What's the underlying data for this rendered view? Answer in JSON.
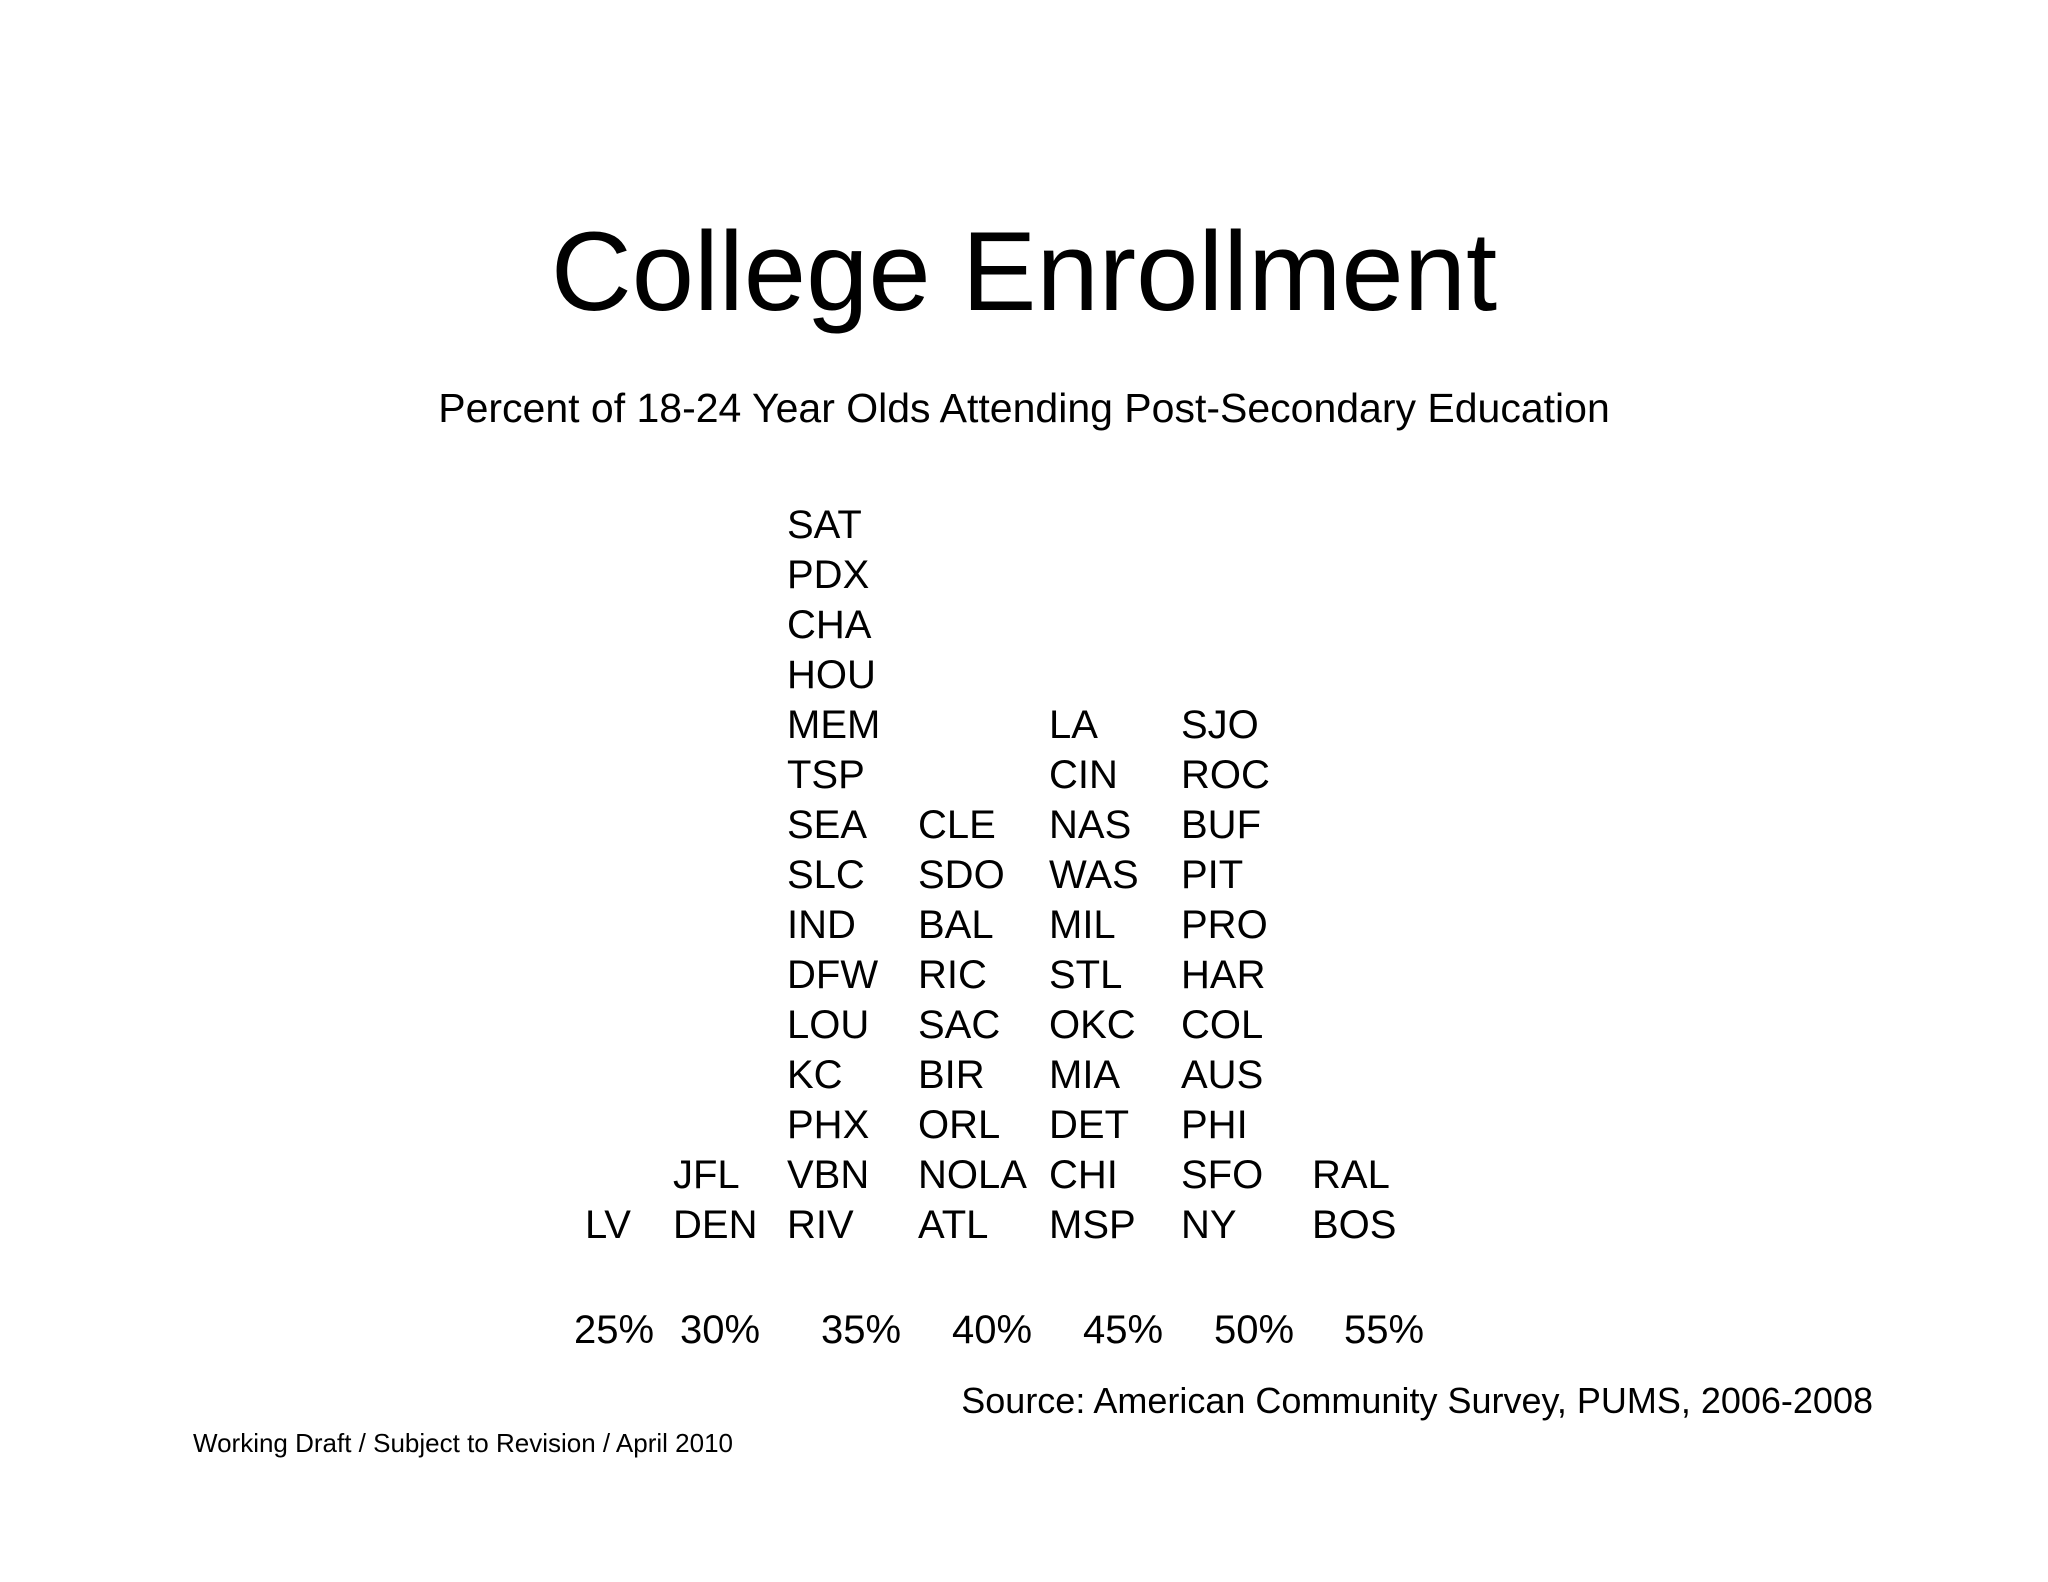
{
  "header": {
    "title": "College Enrollment",
    "subtitle": "Percent of 18-24 Year Olds Attending Post-Secondary Education"
  },
  "chart_data": {
    "type": "dot-plot (city labels stacked by bin)",
    "title": "College Enrollment",
    "subtitle": "Percent of 18-24 Year Olds Attending Post-Secondary Education",
    "x_tick_labels": [
      "25%",
      "30%",
      "35%",
      "40%",
      "45%",
      "50%",
      "55%"
    ],
    "bins": [
      {
        "bin": "25%",
        "cities": [
          "LV"
        ]
      },
      {
        "bin": "30%",
        "cities": [
          "JFL",
          "DEN"
        ]
      },
      {
        "bin": "35%",
        "cities": [
          "SAT",
          "PDX",
          "CHA",
          "HOU",
          "MEM",
          "TSP",
          "SEA",
          "SLC",
          "IND",
          "DFW",
          "LOU",
          "KC",
          "PHX",
          "VBN",
          "RIV"
        ]
      },
      {
        "bin": "40%",
        "cities": [
          "CLE",
          "SDO",
          "BAL",
          "RIC",
          "SAC",
          "BIR",
          "ORL",
          "NOLA",
          "ATL"
        ]
      },
      {
        "bin": "45%",
        "cities": [
          "LA",
          "CIN",
          "NAS",
          "WAS",
          "MIL",
          "STL",
          "OKC",
          "MIA",
          "DET",
          "CHI",
          "MSP"
        ]
      },
      {
        "bin": "50%",
        "cities": [
          "SJO",
          "ROC",
          "BUF",
          "PIT",
          "PRO",
          "HAR",
          "COL",
          "AUS",
          "PHI",
          "SFO",
          "NY"
        ]
      },
      {
        "bin": "55%",
        "cities": [
          "RAL",
          "BOS"
        ]
      }
    ],
    "counts": [
      1,
      2,
      15,
      9,
      11,
      11,
      2
    ],
    "grid": false,
    "legend": "none"
  },
  "footer": {
    "source": "Source: American Community Survey, PUMS, 2006-2008",
    "draft_note": "Working Draft / Subject to Revision / April 2010"
  }
}
